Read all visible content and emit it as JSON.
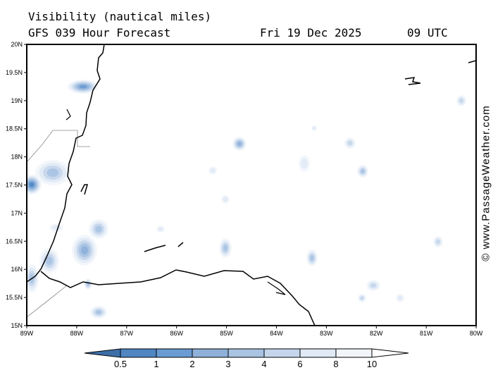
{
  "header": {
    "title": "Visibility (nautical miles)",
    "forecast": "GFS 039 Hour Forecast",
    "date": "Fri 19 Dec 2025",
    "time": "09 UTC"
  },
  "watermark": "© www.PassageWeather.com",
  "map": {
    "lat_labels": [
      "20N",
      "19.5N",
      "19N",
      "18.5N",
      "18N",
      "17.5N",
      "17N",
      "16.5N",
      "16N",
      "15.5N",
      "15N"
    ],
    "lon_labels": [
      "89W",
      "88W",
      "87W",
      "86W",
      "85W",
      "84W",
      "83W",
      "82W",
      "81W",
      "80W"
    ]
  },
  "colorbar": {
    "labels": [
      "0.5",
      "1",
      "2",
      "3",
      "4",
      "6",
      "8",
      "10"
    ],
    "colors": [
      "#3d6fa8",
      "#4f86c2",
      "#6a9bd2",
      "#8eb0d9",
      "#a9c3e2",
      "#c5d6ec",
      "#e0e9f5",
      "#f2f6fb"
    ]
  }
}
